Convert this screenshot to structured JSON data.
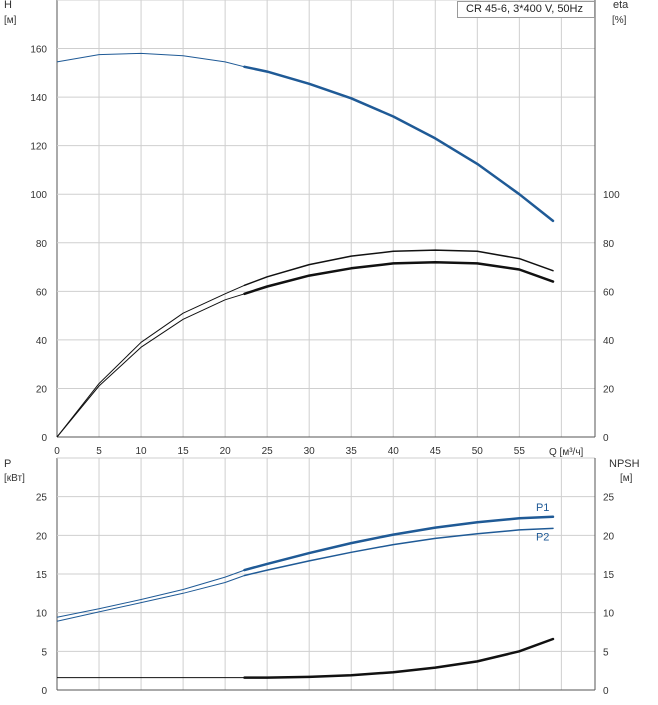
{
  "legend_label": "CR 45-6, 3*400 V, 50Hz",
  "colors": {
    "blue": "#1f5a96",
    "black": "#111111",
    "grid": "#cfcfcf",
    "axis": "#555555"
  },
  "chart_data": [
    {
      "type": "line",
      "y_title_left": [
        "H",
        "[м]"
      ],
      "y_title_right": [
        "eta",
        "[%]"
      ],
      "x_axis_label": "Q [м³/ч]",
      "xlim": [
        0,
        64
      ],
      "x_ticks": [
        0,
        5,
        10,
        15,
        20,
        25,
        30,
        35,
        40,
        45,
        50,
        55
      ],
      "ylim_left": [
        0,
        180
      ],
      "y_ticks_left": [
        0,
        20,
        40,
        60,
        80,
        100,
        120,
        140,
        160
      ],
      "y_ticks_right": [
        0,
        20,
        40,
        60,
        80,
        100
      ],
      "grid": true,
      "series": [
        {
          "key": "H",
          "axis": "left",
          "color": "blue",
          "x": [
            0,
            5,
            10,
            15,
            20,
            22.3,
            25,
            30,
            35,
            40,
            45,
            50,
            55,
            59
          ],
          "y": [
            154.5,
            157.5,
            158,
            157,
            154.5,
            152.5,
            150.5,
            145.5,
            139.5,
            132,
            123,
            112.5,
            100,
            89
          ],
          "thin_until_x": 22.3,
          "width": 2.5
        },
        {
          "key": "eta_upper",
          "axis": "right",
          "color": "black",
          "x": [
            0,
            5,
            10,
            15,
            20,
            22.3,
            25,
            30,
            35,
            40,
            45,
            50,
            55,
            59
          ],
          "y": [
            0,
            22,
            39,
            51,
            59,
            62.5,
            66,
            71,
            74.5,
            76.5,
            77,
            76.5,
            73.5,
            68.5
          ],
          "thin_until_x": 22.3,
          "width": 1.5
        },
        {
          "key": "eta_lower",
          "axis": "right",
          "color": "black",
          "x": [
            0,
            5,
            10,
            15,
            20,
            22.3,
            25,
            30,
            35,
            40,
            45,
            50,
            55,
            59
          ],
          "y": [
            0,
            21,
            37,
            48.5,
            56.5,
            59,
            62,
            66.5,
            69.5,
            71.5,
            72,
            71.5,
            69,
            64
          ],
          "thin_until_x": 22.3,
          "width": 2.5
        }
      ]
    },
    {
      "type": "line",
      "y_title_left": [
        "P",
        "[кВт]"
      ],
      "y_title_right": [
        "NPSH",
        "[м]"
      ],
      "xlim": [
        0,
        64
      ],
      "ylim_left": [
        0,
        30
      ],
      "y_ticks_left": [
        0,
        5,
        10,
        15,
        20,
        25
      ],
      "y_ticks_right": [
        0,
        5,
        10,
        15,
        20,
        25
      ],
      "grid": true,
      "series": [
        {
          "key": "P1",
          "axis": "left",
          "color": "blue",
          "x": [
            0,
            5,
            10,
            15,
            20,
            22.3,
            25,
            30,
            35,
            40,
            45,
            50,
            55,
            59
          ],
          "y": [
            9.4,
            10.5,
            11.7,
            13,
            14.6,
            15.5,
            16.3,
            17.7,
            19,
            20.1,
            21,
            21.7,
            22.2,
            22.4
          ],
          "thin_until_x": 22.3,
          "width": 2.5
        },
        {
          "key": "P2",
          "axis": "left",
          "color": "blue",
          "x": [
            0,
            5,
            10,
            15,
            20,
            22.3,
            25,
            30,
            35,
            40,
            45,
            50,
            55,
            59
          ],
          "y": [
            8.9,
            10.1,
            11.3,
            12.5,
            13.9,
            14.8,
            15.5,
            16.7,
            17.8,
            18.8,
            19.6,
            20.2,
            20.7,
            20.9
          ],
          "thin_until_x": 22.3,
          "width": 1.5
        },
        {
          "key": "NPSH",
          "axis": "right",
          "color": "black",
          "x": [
            0,
            5,
            10,
            15,
            20,
            22.3,
            25,
            30,
            35,
            40,
            45,
            50,
            55,
            59
          ],
          "y": [
            1.6,
            1.6,
            1.6,
            1.6,
            1.6,
            1.6,
            1.6,
            1.7,
            1.9,
            2.3,
            2.9,
            3.7,
            5,
            6.6
          ],
          "thin_until_x": 22.3,
          "width": 2.5
        }
      ],
      "series_labels": [
        {
          "text": "P1",
          "series": "P1"
        },
        {
          "text": "P2",
          "series": "P2"
        }
      ]
    }
  ]
}
